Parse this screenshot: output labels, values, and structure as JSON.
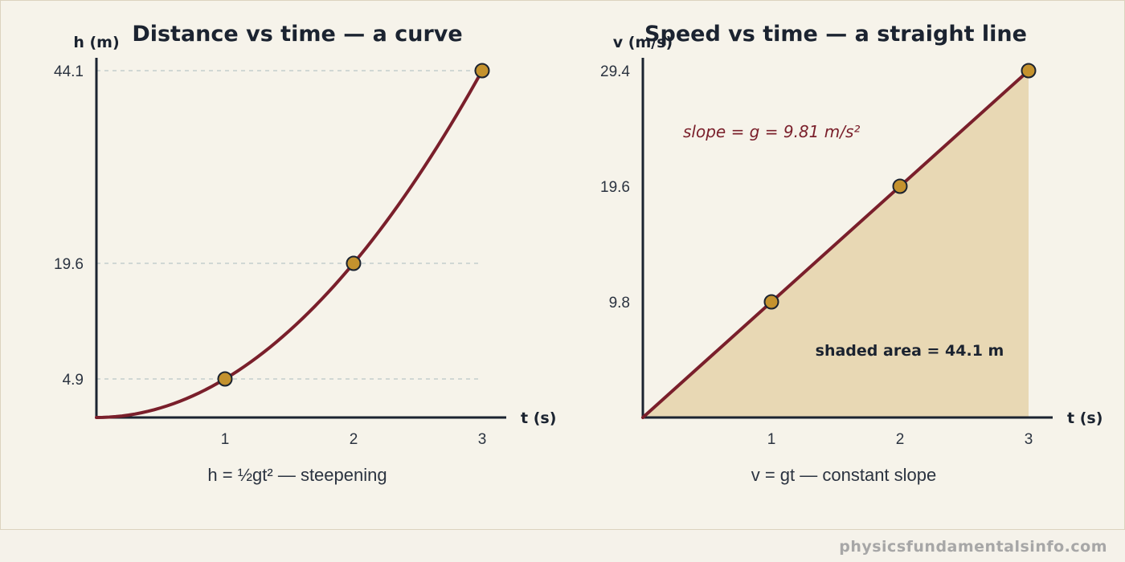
{
  "footer": {
    "site": "physicsfundamentalsinfo.com"
  },
  "colors": {
    "curve": "#7a1f2b",
    "point_fill": "#c4922e",
    "point_stroke": "#1b2330",
    "axis": "#1b2330",
    "grid": "#b9c6c6",
    "shade": "#e8d8b4",
    "text": "#2b3340"
  },
  "chart_data": [
    {
      "type": "line",
      "title": "Distance vs time — a curve",
      "xlabel": "t (s)",
      "ylabel": "h (m)",
      "caption": "h = ½gt² — steepening",
      "xlim": [
        0,
        3
      ],
      "ylim": [
        0,
        44.1
      ],
      "xticks": [
        1,
        2,
        3
      ],
      "xtick_labels": [
        "1",
        "2",
        "3"
      ],
      "yticks": [
        4.9,
        19.6,
        44.1
      ],
      "ytick_labels": [
        "4.9",
        "19.6",
        "44.1"
      ],
      "grid": "horizontal dashed at y ticks",
      "series": [
        {
          "values_from": "h = 0.5 * 9.8 * t^2",
          "x": [
            0,
            0.25,
            0.5,
            0.75,
            1,
            1.25,
            1.5,
            1.75,
            2,
            2.25,
            2.5,
            2.75,
            3
          ],
          "y": [
            0,
            0.31,
            1.23,
            2.76,
            4.9,
            7.66,
            11.03,
            15.01,
            19.6,
            24.81,
            30.63,
            37.06,
            44.1
          ]
        }
      ],
      "points": [
        {
          "x": 1,
          "y": 4.9
        },
        {
          "x": 2,
          "y": 19.6
        },
        {
          "x": 3,
          "y": 44.1
        }
      ]
    },
    {
      "type": "area",
      "title": "Speed vs time — a straight line",
      "xlabel": "t (s)",
      "ylabel": "v (m/s)",
      "caption": "v = gt — constant slope",
      "xlim": [
        0,
        3
      ],
      "ylim": [
        0,
        29.4
      ],
      "xticks": [
        1,
        2,
        3
      ],
      "xtick_labels": [
        "1",
        "2",
        "3"
      ],
      "yticks": [
        9.8,
        19.6,
        29.4
      ],
      "ytick_labels": [
        "9.8",
        "19.6",
        "29.4"
      ],
      "grid": false,
      "series": [
        {
          "x": [
            0,
            3
          ],
          "y": [
            0,
            29.4
          ]
        }
      ],
      "points": [
        {
          "x": 1,
          "y": 9.8
        },
        {
          "x": 2,
          "y": 19.6
        },
        {
          "x": 3,
          "y": 29.4
        }
      ],
      "annotations": {
        "slope": "slope = g = 9.81 m/s²",
        "area": "shaded area = 44.1 m"
      }
    }
  ]
}
